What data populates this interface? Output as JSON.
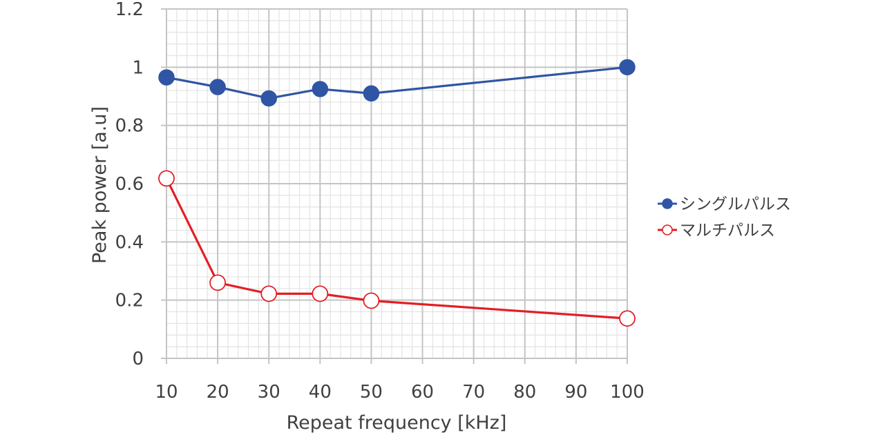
{
  "chart_data": {
    "type": "line",
    "xlabel": "Repeat frequency [kHz]",
    "ylabel": "Peak power [a.u]",
    "xlim": [
      10,
      100
    ],
    "ylim": [
      0,
      1.2
    ],
    "x_ticks": [
      10,
      20,
      30,
      40,
      50,
      60,
      70,
      80,
      90,
      100
    ],
    "y_ticks": [
      0,
      0.2,
      0.4,
      0.6,
      0.8,
      1,
      1.2
    ],
    "y_tick_labels": [
      "0",
      "0.2",
      "0.4",
      "0.6",
      "0.8",
      "1",
      "1.2"
    ],
    "grid": "major and minor",
    "legend_position": "right",
    "series": [
      {
        "name": "シングルパルス",
        "color": "#2f55a4",
        "marker": "filled-circle",
        "x": [
          10,
          20,
          30,
          40,
          50,
          100
        ],
        "y": [
          0.965,
          0.932,
          0.893,
          0.925,
          0.91,
          1.0
        ]
      },
      {
        "name": "マルチパルス",
        "color": "#e31e24",
        "marker": "open-circle",
        "x": [
          10,
          20,
          30,
          40,
          50,
          100
        ],
        "y": [
          0.618,
          0.26,
          0.222,
          0.222,
          0.198,
          0.137
        ]
      }
    ]
  }
}
